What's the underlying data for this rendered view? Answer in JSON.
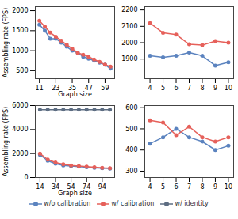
{
  "chart_data": [
    {
      "type": "line",
      "xlabel": "Graph size",
      "ylabel": "Assembling rate (FPS)",
      "x": [
        11,
        15,
        19,
        23,
        27,
        31,
        35,
        39,
        43,
        47,
        51,
        55,
        59,
        63
      ],
      "xlim": [
        8,
        66
      ],
      "xticks": [
        11,
        23,
        35,
        47,
        59
      ],
      "ylim": [
        300,
        2100
      ],
      "yticks": [
        500,
        1000,
        1500,
        2000
      ],
      "series": [
        {
          "name": "w/o calibration",
          "color": "#5b83bf",
          "marker": "circle",
          "values": [
            1650,
            1500,
            1300,
            1300,
            1200,
            1100,
            1000,
            950,
            850,
            800,
            750,
            700,
            650,
            550
          ]
        },
        {
          "name": "w/ calibration",
          "color": "#e6605a",
          "marker": "circle",
          "values": [
            1750,
            1600,
            1450,
            1350,
            1250,
            1150,
            1050,
            950,
            900,
            850,
            780,
            720,
            650,
            600
          ]
        }
      ]
    },
    {
      "type": "line",
      "x": [
        4,
        5,
        6,
        7,
        8,
        9,
        10
      ],
      "xlim": [
        3.6,
        10.4
      ],
      "xticks": [
        4,
        5,
        6,
        7,
        8,
        9,
        10
      ],
      "ylim": [
        1780,
        2220
      ],
      "yticks": [
        1900,
        2000,
        2100,
        2200
      ],
      "series": [
        {
          "name": "w/o calibration",
          "color": "#5b83bf",
          "marker": "circle",
          "values": [
            1920,
            1910,
            1920,
            1940,
            1920,
            1860,
            1880
          ]
        },
        {
          "name": "w/ calibration",
          "color": "#e6605a",
          "marker": "circle",
          "values": [
            2120,
            2060,
            2050,
            1990,
            1985,
            2010,
            2000
          ]
        }
      ]
    },
    {
      "type": "line",
      "xlabel": "Graph size",
      "ylabel": "Assembling rate (FPS)",
      "x": [
        14,
        24,
        34,
        44,
        54,
        64,
        74,
        84,
        94,
        104
      ],
      "xlim": [
        8,
        110
      ],
      "xticks": [
        14,
        34,
        54,
        74,
        94
      ],
      "ylim": [
        0,
        6000
      ],
      "yticks": [
        0,
        2000,
        4000,
        6000
      ],
      "series": [
        {
          "name": "w/o calibration",
          "color": "#5b83bf",
          "marker": "circle",
          "values": [
            1900,
            1400,
            1150,
            1000,
            950,
            900,
            850,
            800,
            780,
            750
          ]
        },
        {
          "name": "w/ calibration",
          "color": "#e6605a",
          "marker": "circle",
          "values": [
            2000,
            1500,
            1250,
            1100,
            1000,
            950,
            900,
            850,
            800,
            780
          ]
        },
        {
          "name": "w/ identity",
          "color": "#5d6d82",
          "marker": "circle",
          "values": [
            5650,
            5650,
            5650,
            5650,
            5650,
            5650,
            5650,
            5650,
            5650,
            5650
          ]
        }
      ]
    },
    {
      "type": "line",
      "x": [
        4,
        5,
        6,
        7,
        8,
        9,
        10
      ],
      "xlim": [
        3.6,
        10.4
      ],
      "xticks": [
        4,
        5,
        6,
        7,
        8,
        9,
        10
      ],
      "ylim": [
        270,
        610
      ],
      "yticks": [
        300,
        400,
        500,
        600
      ],
      "series": [
        {
          "name": "w/o calibration",
          "color": "#5b83bf",
          "marker": "circle",
          "values": [
            430,
            460,
            500,
            460,
            440,
            400,
            420
          ]
        },
        {
          "name": "w/ calibration",
          "color": "#e6605a",
          "marker": "circle",
          "values": [
            540,
            530,
            470,
            510,
            460,
            440,
            460
          ]
        }
      ]
    }
  ]
}
